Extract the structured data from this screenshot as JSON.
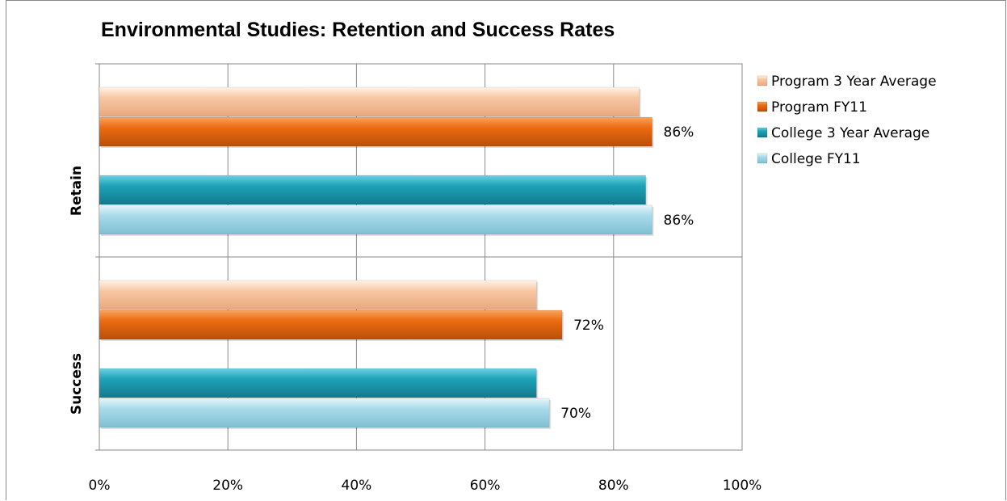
{
  "chart_data": {
    "type": "bar",
    "orientation": "horizontal",
    "title": "Environmental Studies: Retention and Success Rates",
    "categories": [
      "Retain",
      "Success"
    ],
    "series": [
      {
        "name": "Program 3 Year Average",
        "values": [
          84,
          68
        ],
        "labels": [
          "",
          ""
        ],
        "color": "#f8c8a4"
      },
      {
        "name": "Program FY11",
        "values": [
          86,
          72
        ],
        "labels": [
          "86%",
          "72%"
        ],
        "color": "#ec6c12"
      },
      {
        "name": "College 3 Year Average",
        "values": [
          85,
          68
        ],
        "labels": [
          "",
          ""
        ],
        "color": "#1ea3b9"
      },
      {
        "name": "College FY11",
        "values": [
          86,
          70
        ],
        "labels": [
          "86%",
          "70%"
        ],
        "color": "#a9dbea"
      }
    ],
    "xlim": [
      0,
      100
    ],
    "xticks": [
      "0%",
      "20%",
      "40%",
      "60%",
      "80%",
      "100%"
    ],
    "grid": true,
    "legend_position": "right"
  }
}
